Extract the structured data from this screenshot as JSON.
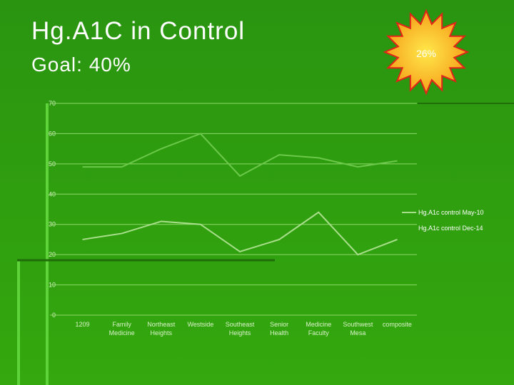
{
  "header": {
    "title": "Hg.A1C in Control",
    "subtitle": "Goal: 40%",
    "badge": "26%"
  },
  "chart_data": {
    "type": "line",
    "categories": [
      "1209",
      "Family Medicine",
      "Northeast Heights",
      "Westside",
      "Southeast Heights",
      "Senior Health",
      "Medicine Faculty",
      "Southwest Mesa",
      "composite"
    ],
    "series": [
      {
        "name": "Hg.A1c control May-10",
        "color": "#a9df8c",
        "values": [
          25,
          27,
          31,
          30,
          21,
          25,
          34,
          20,
          25
        ]
      },
      {
        "name": "Hg.A1c control Dec-14",
        "color": "#6cc84a",
        "values": [
          49,
          49,
          55,
          60,
          46,
          53,
          52,
          49,
          51
        ]
      }
    ],
    "ylim": [
      0,
      70
    ],
    "yticks": [
      0,
      10,
      20,
      30,
      40,
      50,
      60,
      70
    ],
    "grid": true,
    "legend": "right"
  }
}
